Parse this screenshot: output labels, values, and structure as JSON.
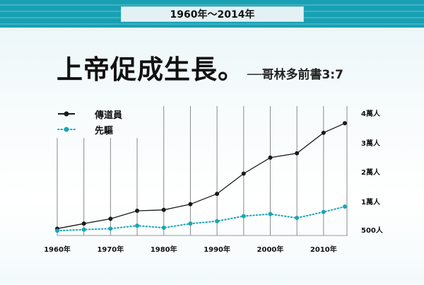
{
  "header": {
    "date_range": "1960年～2014年"
  },
  "headline": {
    "main": "上帝促成生長。",
    "reference": "──哥林多前書3:7"
  },
  "chart_data": {
    "type": "line",
    "x": [
      1960,
      1965,
      1970,
      1975,
      1980,
      1985,
      1990,
      1995,
      2000,
      2005,
      2010,
      2014
    ],
    "xlim": [
      1960,
      2014
    ],
    "x_ticks": [
      1960,
      1970,
      1980,
      1990,
      2000,
      2010
    ],
    "x_tick_labels": [
      "1960年",
      "1970年",
      "1980年",
      "1990年",
      "2000年",
      "2010年"
    ],
    "ylim": [
      500,
      40000
    ],
    "y_ticks": [
      500,
      10000,
      20000,
      30000,
      40000
    ],
    "y_tick_labels": [
      "500人",
      "1萬人",
      "2萬人",
      "3萬人",
      "4萬人"
    ],
    "series": [
      {
        "name": "傳道員",
        "color": "#1a1a1a",
        "style": "solid",
        "values": [
          900,
          2600,
          4200,
          6900,
          7200,
          9100,
          12600,
          19400,
          24900,
          26400,
          33400,
          36600
        ]
      },
      {
        "name": "先驅",
        "color": "#1aa6b5",
        "style": "dotted",
        "values": [
          200,
          600,
          900,
          1900,
          1200,
          2600,
          3400,
          5100,
          5800,
          4500,
          6500,
          8300
        ]
      }
    ],
    "legend_position": "top-left",
    "grid": "vertical lines at every 5 years"
  }
}
